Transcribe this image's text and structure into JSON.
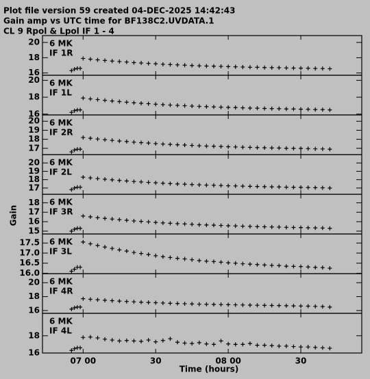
{
  "header": {
    "lines": [
      "Plot file version 59  created 04-DEC-2025 14:42:43",
      "Gain amp vs UTC time for BF138C2.UVDATA.1",
      "CL 9  Rpol & Lpol  IF 1 - 4"
    ]
  },
  "x_axis": {
    "label": "Time (hours)",
    "xlim": [
      6.72,
      8.92
    ],
    "xticks": [
      {
        "value": 7,
        "label": "07 00"
      },
      {
        "value": 7.5,
        "label": "30"
      },
      {
        "value": 8,
        "label": "08 00"
      },
      {
        "value": 8.5,
        "label": "30"
      }
    ]
  },
  "y_axis": {
    "label": "Gain"
  },
  "chart_data": [
    {
      "type": "scatter",
      "labels": [
        "6 MK",
        "IF 1R"
      ],
      "ylim": [
        15.7,
        20.9
      ],
      "yticks": [
        16,
        18,
        20
      ],
      "x": [
        6.92,
        6.94,
        6.96,
        6.98,
        7.0,
        7.05,
        7.1,
        7.15,
        7.2,
        7.25,
        7.3,
        7.35,
        7.4,
        7.45,
        7.5,
        7.55,
        7.6,
        7.65,
        7.7,
        7.75,
        7.8,
        7.85,
        7.9,
        7.95,
        8.0,
        8.05,
        8.1,
        8.15,
        8.2,
        8.25,
        8.3,
        8.35,
        8.4,
        8.45,
        8.5,
        8.55,
        8.6,
        8.65,
        8.7
      ],
      "values": [
        16.3,
        16.5,
        16.6,
        16.6,
        17.9,
        17.81,
        17.72,
        17.64,
        17.56,
        17.5,
        17.43,
        17.36,
        17.31,
        17.25,
        17.2,
        17.14,
        17.1,
        17.06,
        17.02,
        16.98,
        16.94,
        16.91,
        16.89,
        16.86,
        16.83,
        16.81,
        16.78,
        16.75,
        16.74,
        16.71,
        16.7,
        16.69,
        16.66,
        16.64,
        16.63,
        16.62,
        16.59,
        16.58,
        16.55
      ]
    },
    {
      "type": "scatter",
      "labels": [
        "6 MK",
        "IF 1L"
      ],
      "ylim": [
        15.9,
        20.6
      ],
      "yticks": [
        16,
        18,
        20
      ],
      "x": [
        6.92,
        6.94,
        6.96,
        6.98,
        7.0,
        7.05,
        7.1,
        7.15,
        7.2,
        7.25,
        7.3,
        7.35,
        7.4,
        7.45,
        7.5,
        7.55,
        7.6,
        7.65,
        7.7,
        7.75,
        7.8,
        7.85,
        7.9,
        7.95,
        8.0,
        8.05,
        8.1,
        8.15,
        8.2,
        8.25,
        8.3,
        8.35,
        8.4,
        8.45,
        8.5,
        8.55,
        8.6,
        8.65,
        8.7
      ],
      "values": [
        16.2,
        16.4,
        16.5,
        16.5,
        17.9,
        17.8,
        17.72,
        17.63,
        17.55,
        17.48,
        17.41,
        17.34,
        17.28,
        17.23,
        17.17,
        17.12,
        17.07,
        17.03,
        16.99,
        16.95,
        16.91,
        16.88,
        16.85,
        16.82,
        16.79,
        16.77,
        16.74,
        16.71,
        16.7,
        16.67,
        16.65,
        16.64,
        16.61,
        16.6,
        16.58,
        16.57,
        16.54,
        16.53,
        16.5
      ]
    },
    {
      "type": "scatter",
      "labels": [
        "6 MK",
        "IF 2R"
      ],
      "ylim": [
        16.3,
        20.7
      ],
      "yticks": [
        17,
        18,
        19,
        20
      ],
      "x": [
        6.92,
        6.94,
        6.96,
        6.98,
        7.0,
        7.05,
        7.1,
        7.15,
        7.2,
        7.25,
        7.3,
        7.35,
        7.4,
        7.45,
        7.5,
        7.55,
        7.6,
        7.65,
        7.7,
        7.75,
        7.8,
        7.85,
        7.9,
        7.95,
        8.0,
        8.05,
        8.1,
        8.15,
        8.2,
        8.25,
        8.3,
        8.35,
        8.4,
        8.45,
        8.5,
        8.55,
        8.6,
        8.65,
        8.7
      ],
      "values": [
        16.6,
        16.8,
        16.9,
        16.9,
        18.2,
        18.11,
        18.03,
        17.95,
        17.88,
        17.81,
        17.75,
        17.68,
        17.63,
        17.58,
        17.52,
        17.47,
        17.43,
        17.39,
        17.36,
        17.32,
        17.28,
        17.25,
        17.23,
        17.2,
        17.17,
        17.15,
        17.12,
        17.1,
        17.08,
        17.06,
        17.04,
        17.03,
        17.0,
        16.99,
        16.98,
        16.96,
        16.94,
        16.93,
        16.9
      ]
    },
    {
      "type": "scatter",
      "labels": [
        "6 MK",
        "IF 2L"
      ],
      "ylim": [
        16.25,
        21.0
      ],
      "yticks": [
        17,
        18,
        19,
        20
      ],
      "x": [
        6.92,
        6.94,
        6.96,
        6.98,
        7.0,
        7.05,
        7.1,
        7.15,
        7.2,
        7.25,
        7.3,
        7.35,
        7.4,
        7.45,
        7.5,
        7.55,
        7.6,
        7.65,
        7.7,
        7.75,
        7.8,
        7.85,
        7.9,
        7.95,
        8.0,
        8.05,
        8.1,
        8.15,
        8.2,
        8.25,
        8.3,
        8.35,
        8.4,
        8.45,
        8.5,
        8.55,
        8.6,
        8.65,
        8.7
      ],
      "values": [
        16.8,
        17.0,
        17.1,
        17.1,
        18.3,
        18.21,
        18.13,
        18.05,
        17.98,
        17.91,
        17.85,
        17.78,
        17.73,
        17.68,
        17.62,
        17.57,
        17.53,
        17.49,
        17.46,
        17.42,
        17.38,
        17.35,
        17.33,
        17.3,
        17.27,
        17.25,
        17.22,
        17.2,
        17.18,
        17.16,
        17.14,
        17.13,
        17.1,
        17.09,
        17.08,
        17.06,
        17.04,
        17.03,
        17.0
      ]
    },
    {
      "type": "scatter",
      "labels": [
        "6 MK",
        "IF 3R"
      ],
      "ylim": [
        14.7,
        18.9
      ],
      "yticks": [
        15,
        16,
        17,
        18
      ],
      "x": [
        6.92,
        6.94,
        6.96,
        6.98,
        7.0,
        7.05,
        7.1,
        7.15,
        7.2,
        7.25,
        7.3,
        7.35,
        7.4,
        7.45,
        7.5,
        7.55,
        7.6,
        7.65,
        7.7,
        7.75,
        7.8,
        7.85,
        7.9,
        7.95,
        8.0,
        8.05,
        8.1,
        8.15,
        8.2,
        8.25,
        8.3,
        8.35,
        8.4,
        8.45,
        8.5,
        8.55,
        8.6,
        8.65,
        8.7
      ],
      "values": [
        15.0,
        15.2,
        15.3,
        15.3,
        16.6,
        16.51,
        16.43,
        16.35,
        16.28,
        16.21,
        16.15,
        16.08,
        16.03,
        15.98,
        15.92,
        15.87,
        15.83,
        15.79,
        15.76,
        15.72,
        15.68,
        15.65,
        15.63,
        15.6,
        15.57,
        15.55,
        15.52,
        15.5,
        15.48,
        15.46,
        15.44,
        15.43,
        15.4,
        15.39,
        15.38,
        15.36,
        15.34,
        15.33,
        15.3
      ]
    },
    {
      "type": "scatter",
      "labels": [
        "6 MK",
        "IF 3L"
      ],
      "ylim": [
        15.98,
        17.95
      ],
      "yticks": [
        {
          "value": 16,
          "label": "16.0"
        },
        16.5,
        {
          "value": 17,
          "label": "17.0"
        },
        17.5
      ],
      "x": [
        6.92,
        6.94,
        6.96,
        6.98,
        7.0,
        7.05,
        7.1,
        7.15,
        7.2,
        7.25,
        7.3,
        7.35,
        7.4,
        7.45,
        7.5,
        7.55,
        7.6,
        7.65,
        7.7,
        7.75,
        7.8,
        7.85,
        7.9,
        7.95,
        8.0,
        8.05,
        8.1,
        8.15,
        8.2,
        8.25,
        8.3,
        8.35,
        8.4,
        8.45,
        8.5,
        8.55,
        8.6,
        8.65,
        8.7
      ],
      "values": [
        16.1,
        16.2,
        16.3,
        16.3,
        17.55,
        17.46,
        17.38,
        17.3,
        17.23,
        17.16,
        17.1,
        17.03,
        16.98,
        16.93,
        16.87,
        16.82,
        16.78,
        16.74,
        16.71,
        16.67,
        16.63,
        16.6,
        16.58,
        16.55,
        16.52,
        16.5,
        16.47,
        16.45,
        16.43,
        16.41,
        16.39,
        16.38,
        16.35,
        16.34,
        16.33,
        16.31,
        16.29,
        16.28,
        16.25
      ]
    },
    {
      "type": "scatter",
      "labels": [
        "6 MK",
        "IF 4R"
      ],
      "ylim": [
        15.6,
        21.3
      ],
      "yticks": [
        16,
        18,
        20
      ],
      "x": [
        6.92,
        6.94,
        6.96,
        6.98,
        7.0,
        7.05,
        7.1,
        7.15,
        7.2,
        7.25,
        7.3,
        7.35,
        7.4,
        7.45,
        7.5,
        7.55,
        7.6,
        7.65,
        7.7,
        7.75,
        7.8,
        7.85,
        7.9,
        7.95,
        8.0,
        8.05,
        8.1,
        8.15,
        8.2,
        8.25,
        8.3,
        8.35,
        8.4,
        8.45,
        8.5,
        8.55,
        8.6,
        8.65,
        8.7
      ],
      "values": [
        16.2,
        16.4,
        16.5,
        16.5,
        17.7,
        17.62,
        17.55,
        17.48,
        17.42,
        17.36,
        17.3,
        17.25,
        17.2,
        17.16,
        17.12,
        17.08,
        17.04,
        17.01,
        16.98,
        16.95,
        16.92,
        16.9,
        16.88,
        16.86,
        16.84,
        16.82,
        16.8,
        16.78,
        16.76,
        16.74,
        16.73,
        16.72,
        16.69,
        16.67,
        16.65,
        16.63,
        16.6,
        16.57,
        16.5
      ]
    },
    {
      "type": "scatter",
      "labels": [
        "6 MK",
        "IF 4L"
      ],
      "ylim": [
        16.0,
        20.6
      ],
      "yticks": [
        16,
        18
      ],
      "x": [
        6.92,
        6.94,
        6.96,
        6.98,
        7.0,
        7.05,
        7.1,
        7.15,
        7.2,
        7.25,
        7.3,
        7.35,
        7.4,
        7.45,
        7.5,
        7.55,
        7.6,
        7.65,
        7.7,
        7.75,
        7.8,
        7.85,
        7.9,
        7.95,
        8.0,
        8.05,
        8.1,
        8.15,
        8.2,
        8.25,
        8.3,
        8.35,
        8.4,
        8.45,
        8.5,
        8.55,
        8.6,
        8.65,
        8.7
      ],
      "values": [
        16.3,
        16.5,
        16.6,
        16.6,
        17.8,
        17.85,
        17.75,
        17.6,
        17.5,
        17.4,
        17.45,
        17.4,
        17.35,
        17.5,
        17.3,
        17.45,
        17.65,
        17.25,
        17.15,
        17.1,
        17.2,
        17.05,
        17.0,
        17.4,
        17.05,
        17.0,
        17.0,
        17.1,
        16.9,
        16.9,
        16.85,
        16.8,
        16.8,
        16.75,
        16.7,
        16.7,
        16.65,
        16.6,
        16.55
      ]
    }
  ]
}
